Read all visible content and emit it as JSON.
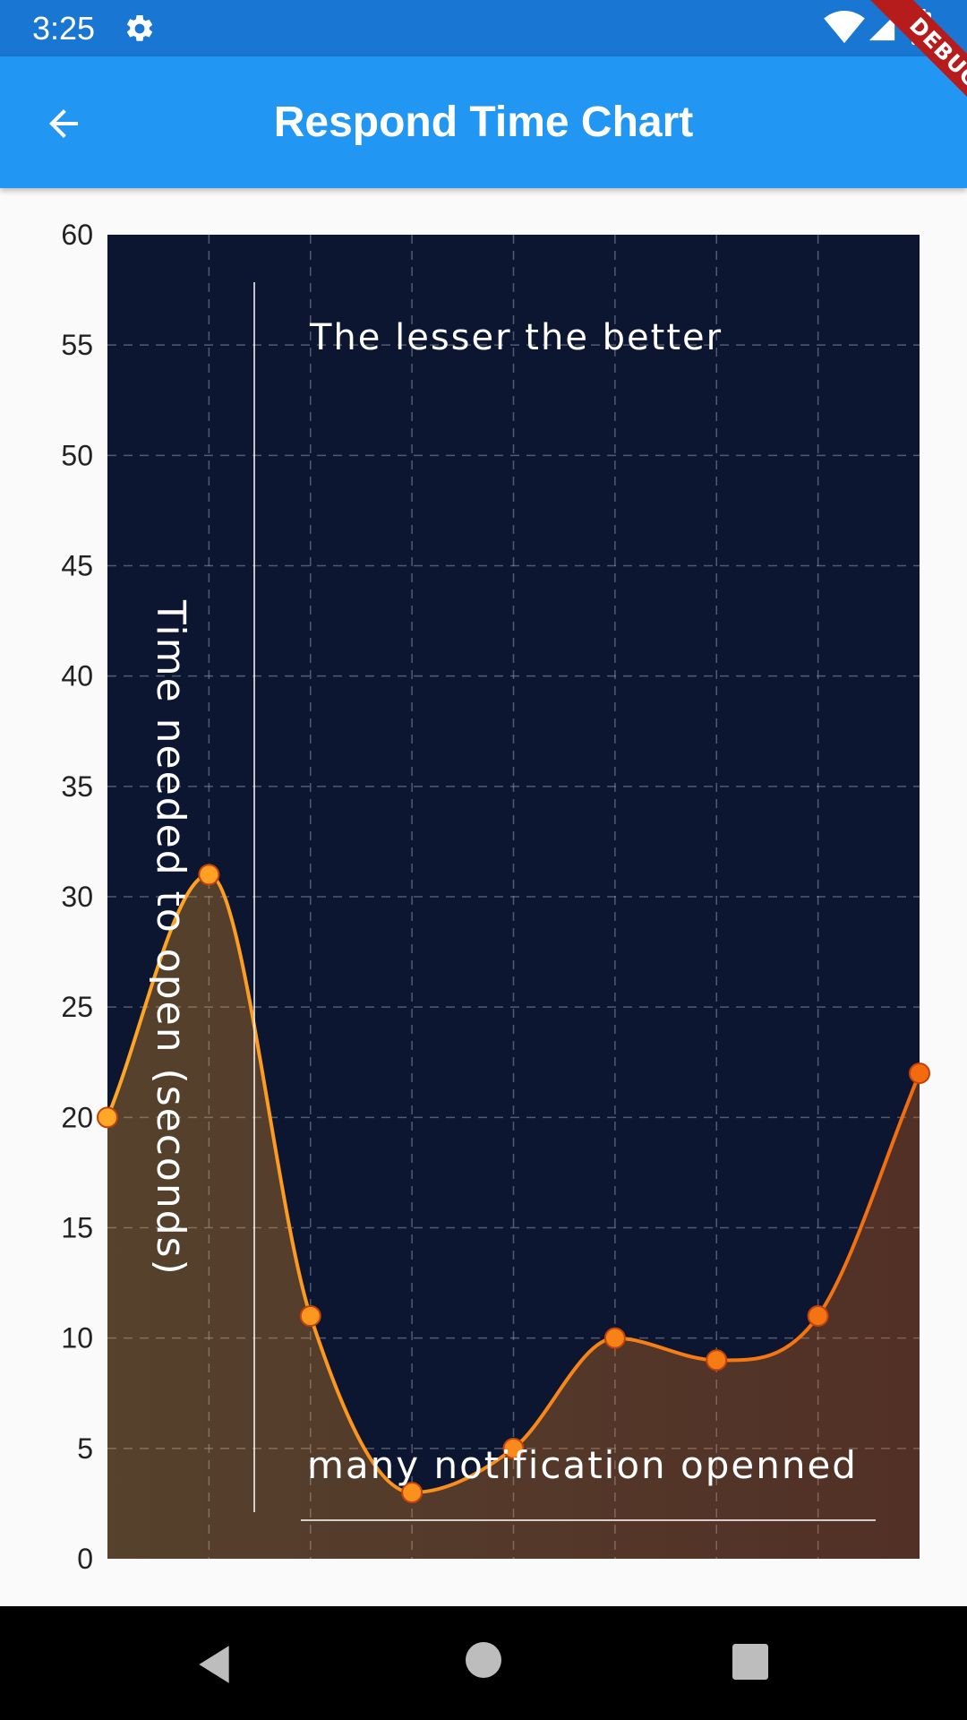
{
  "status_bar": {
    "time": "3:25",
    "icons": [
      "gear-icon",
      "wifi-icon",
      "signal-icon",
      "battery-icon"
    ]
  },
  "app_bar": {
    "title": "Respond Time Chart",
    "back_icon": "arrow-back-icon"
  },
  "debug_banner": {
    "label": "DEBUG",
    "color": "#b71c1c"
  },
  "colors": {
    "status_bar": "#1976d2",
    "app_bar": "#2196f3",
    "plot_background": "#0d1630",
    "line_start": "#ffa726",
    "line_end": "#f26c0f"
  },
  "chart_data": {
    "type": "line",
    "curved": true,
    "x": [
      0,
      1,
      2,
      3,
      4,
      5,
      6,
      7,
      8
    ],
    "series": [
      {
        "values": [
          20,
          31,
          11,
          3,
          5,
          10,
          9,
          11,
          22
        ]
      }
    ],
    "ylabel": "Time needed to open (seconds)",
    "top_title": "The lesser the better",
    "bottom_title": "many notification openned",
    "ylim": [
      0,
      60
    ],
    "y_ticks": [
      "0",
      "5",
      "10",
      "15",
      "20",
      "25",
      "30",
      "35",
      "40",
      "45",
      "50",
      "55",
      "60"
    ],
    "x_ticks": [],
    "grid": true,
    "grid_style": "dashed",
    "area_fill": true,
    "legend": "none"
  },
  "nav_bar": {
    "icons": [
      "nav-back-icon",
      "nav-home-icon",
      "nav-recents-icon"
    ]
  }
}
